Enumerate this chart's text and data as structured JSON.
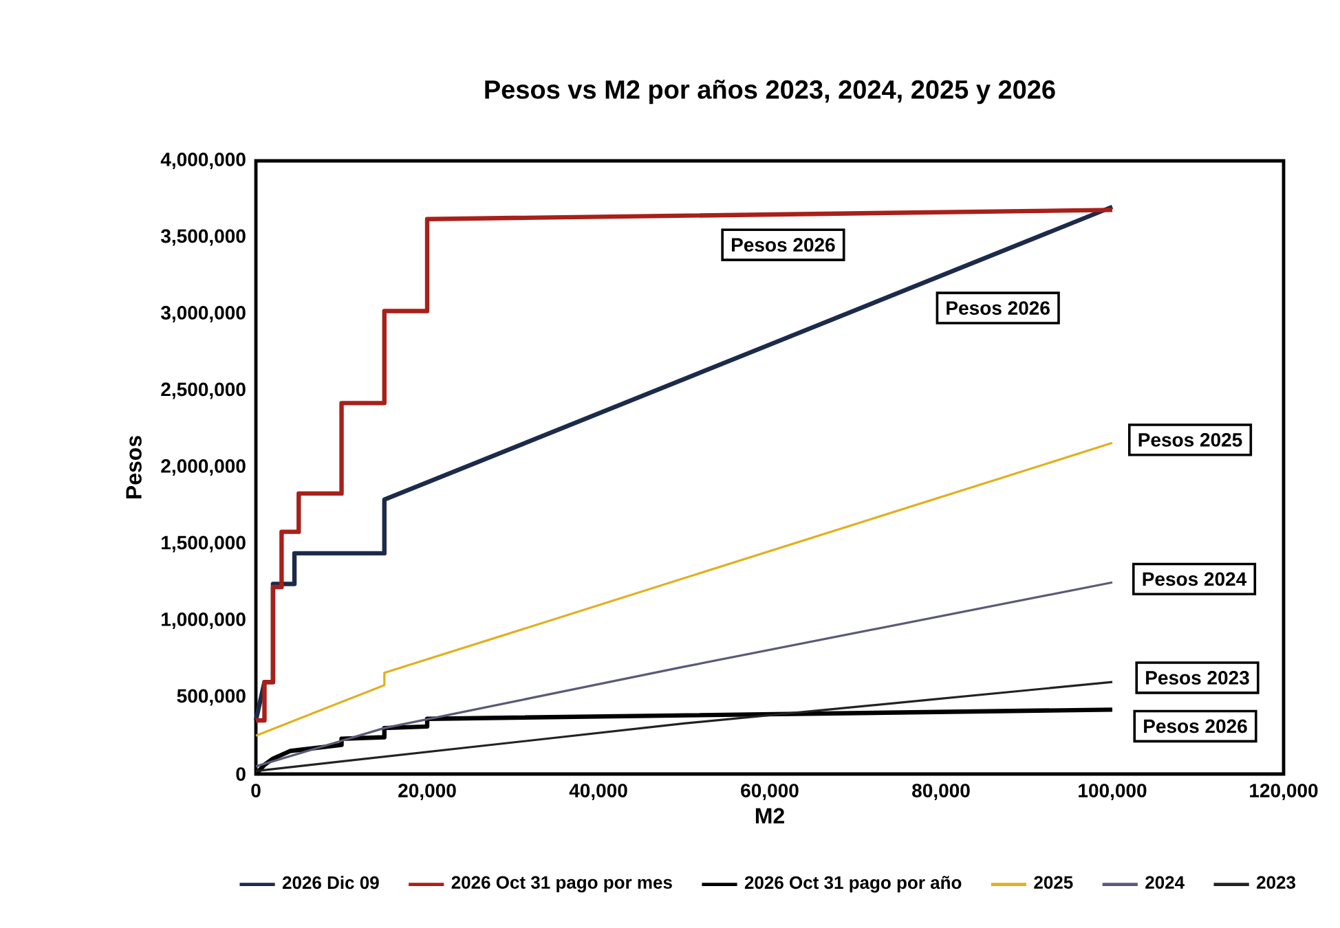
{
  "chart_data": {
    "type": "line",
    "title": "Pesos vs M2 por años 2023, 2024, 2025 y 2026",
    "xlabel": "M2",
    "ylabel": "Pesos",
    "xlim": [
      0,
      120000
    ],
    "ylim": [
      0,
      4000000
    ],
    "xticks": [
      0,
      {
        "value": 20000,
        "label": "20,000"
      },
      {
        "value": 40000,
        "label": "40,000"
      },
      {
        "value": 60000,
        "label": "60,000"
      },
      {
        "value": 80000,
        "label": "80,000"
      },
      {
        "value": 100000,
        "label": "100,000"
      },
      {
        "value": 120000,
        "label": "120,000"
      }
    ],
    "yticks": [
      0,
      {
        "value": 500000,
        "label": "500,000"
      },
      {
        "value": 1000000,
        "label": "1,000,000"
      },
      {
        "value": 1500000,
        "label": "1,500,000"
      },
      {
        "value": 2000000,
        "label": "2,000,000"
      },
      {
        "value": 2500000,
        "label": "2,500,000"
      },
      {
        "value": 3000000,
        "label": "3,000,000"
      },
      {
        "value": 3500000,
        "label": "3,500,000"
      },
      {
        "value": 4000000,
        "label": "4,000,000"
      }
    ],
    "grid": false,
    "legend": "bottom",
    "marker": "none",
    "line_style": "solid",
    "series": [
      {
        "name": "2026 Dic 09",
        "color": "#1c2b4a",
        "x": [
          0,
          1000,
          2000,
          2000,
          4500,
          4500,
          15000,
          15000,
          100000
        ],
        "values": [
          350000,
          600000,
          600000,
          1240000,
          1240000,
          1440000,
          1440000,
          1790000,
          3700000
        ]
      },
      {
        "name": "2026 Oct 31 pago por mes",
        "color": "#a8201a",
        "x": [
          0,
          1000,
          1000,
          2000,
          2000,
          3000,
          3000,
          5000,
          5000,
          10000,
          10000,
          15000,
          15000,
          20000,
          20000,
          100000
        ],
        "values": [
          350000,
          350000,
          600000,
          600000,
          1220000,
          1220000,
          1580000,
          1580000,
          1830000,
          1830000,
          2420000,
          2420000,
          3020000,
          3020000,
          3620000,
          3680000
        ]
      },
      {
        "name": "2026 Oct 31 pago por año",
        "color": "#000000",
        "x": [
          0,
          1000,
          2000,
          4000,
          10000,
          10000,
          15000,
          15000,
          20000,
          20000,
          100000
        ],
        "values": [
          0,
          60000,
          100000,
          150000,
          190000,
          230000,
          240000,
          300000,
          310000,
          360000,
          420000
        ]
      },
      {
        "name": "2025",
        "color": "#e0b020",
        "x": [
          0,
          15000,
          15000,
          100000
        ],
        "values": [
          250000,
          580000,
          660000,
          2160000
        ]
      },
      {
        "name": "2024",
        "color": "#5a5a78",
        "x": [
          0,
          15000,
          50000,
          100000
        ],
        "values": [
          50000,
          300000,
          700000,
          1250000
        ]
      },
      {
        "name": "2023",
        "color": "#222222",
        "x": [
          0,
          50000,
          100000
        ],
        "values": [
          20000,
          330000,
          600000
        ]
      }
    ],
    "annotations": [
      "Pesos 2026",
      "Pesos 2026",
      "Pesos 2025",
      "Pesos 2024",
      "Pesos 2023",
      "Pesos 2026"
    ]
  }
}
